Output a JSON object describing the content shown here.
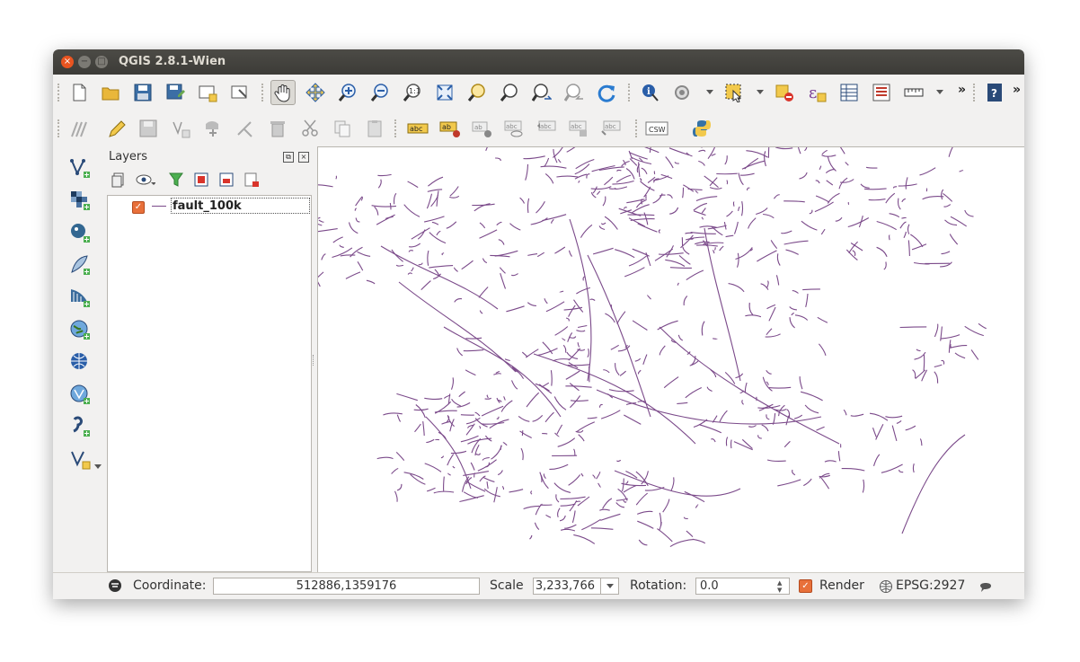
{
  "window": {
    "title": "QGIS 2.8.1-Wien",
    "close_glyph": "×",
    "min_glyph": "−",
    "max_glyph": "□"
  },
  "toolbar": {
    "overflow_glyph": "»",
    "row1_icons": [
      "new-project-icon",
      "open-project-icon",
      "save-project-icon",
      "save-as-icon",
      "new-print-composer-icon",
      "composer-manager-icon",
      "pan-icon",
      "pan-to-selection-icon",
      "zoom-in-icon",
      "zoom-out-icon",
      "zoom-native-icon",
      "zoom-full-icon",
      "zoom-to-selection-icon",
      "zoom-to-layer-icon",
      "zoom-last-icon",
      "zoom-next-icon",
      "refresh-icon",
      "identify-icon",
      "run-action-icon",
      "select-features-icon",
      "deselect-icon",
      "field-calculator-icon",
      "attribute-table-icon",
      "statistics-icon",
      "measure-icon",
      "help-icon"
    ],
    "row2_icons": [
      "digitize-icon",
      "toggle-edit-icon",
      "save-edits-icon",
      "add-feature-icon",
      "move-feature-icon",
      "node-tool-icon",
      "delete-selected-icon",
      "cut-features-icon",
      "copy-features-icon",
      "paste-features-icon",
      "label-icon",
      "label-pin-icon",
      "label-highlight-icon",
      "label-show-hide-icon",
      "label-move-icon",
      "label-rotate-icon",
      "label-change-icon",
      "csw-icon",
      "python-icon"
    ],
    "csw_label": "CSW"
  },
  "sidebar": {
    "icons": [
      "add-vector-layer-icon",
      "add-raster-layer-icon",
      "add-postgis-layer-icon",
      "add-spatialite-layer-icon",
      "add-mssql-layer-icon",
      "add-wms-layer-icon",
      "add-wcs-layer-icon",
      "add-wfs-layer-icon",
      "add-delimited-text-icon",
      "new-shapefile-icon"
    ]
  },
  "layers_panel": {
    "title": "Layers",
    "float_glyph": "⧉",
    "close_glyph": "×",
    "check_glyph": "✓",
    "layers": [
      {
        "name": "fault_100k",
        "checked": true,
        "color": "#7b4a8a"
      }
    ]
  },
  "map": {
    "feature_color": "#7b4a8a"
  },
  "statusbar": {
    "coordinate_label": "Coordinate:",
    "coordinate_value": "512886,1359176",
    "scale_label": "Scale",
    "scale_value": "3,233,766",
    "rotation_label": "Rotation:",
    "rotation_value": "0.0",
    "render_label": "Render",
    "render_checked": true,
    "crs": "EPSG:2927"
  }
}
